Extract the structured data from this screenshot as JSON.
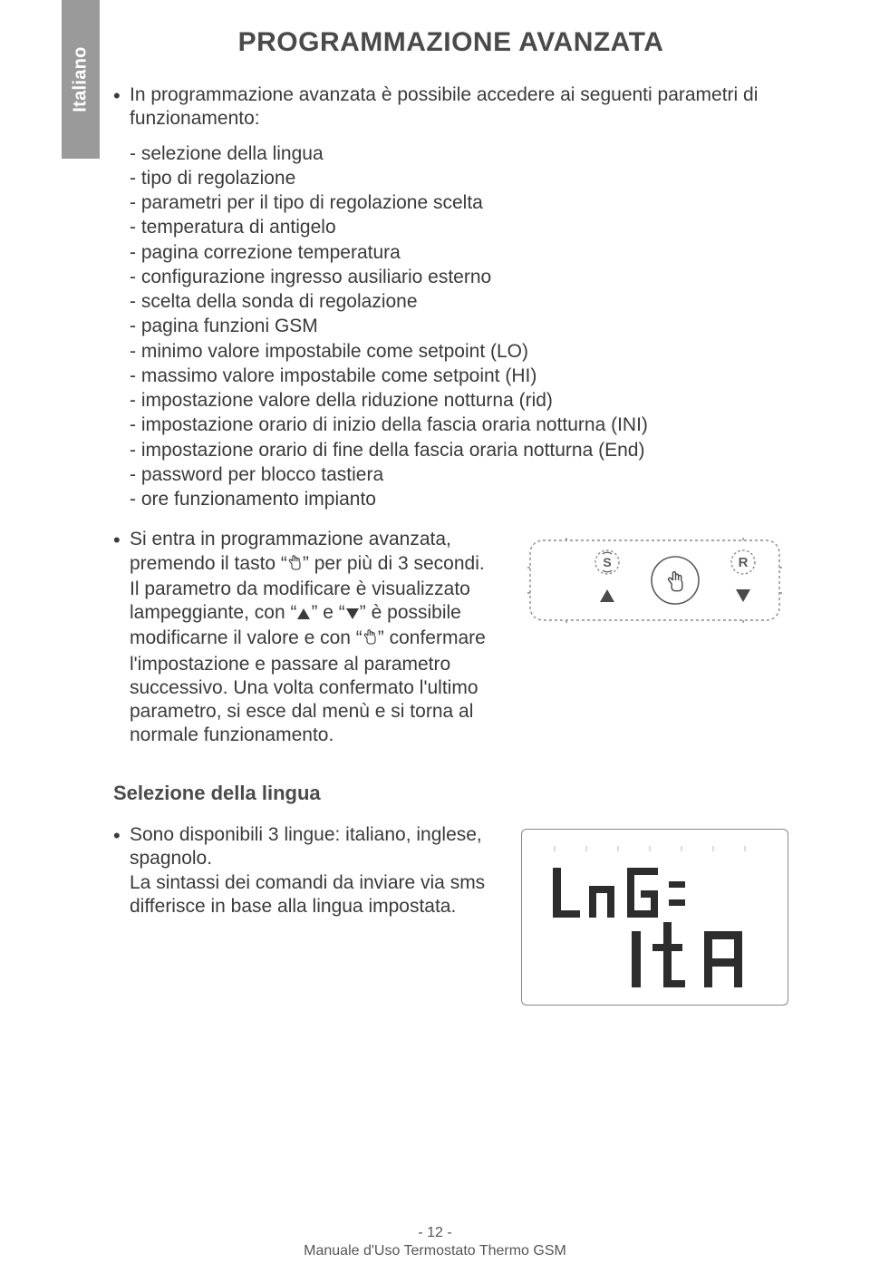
{
  "sideTab": "Italiano",
  "title": "PROGRAMMAZIONE AVANZATA",
  "intro": "In programmazione avanzata è possibile accedere ai seguenti parametri di funzionamento:",
  "paramList": [
    "- selezione della lingua",
    "- tipo di regolazione",
    "- parametri per il tipo di regolazione scelta",
    "- temperatura di antigelo",
    "- pagina correzione temperatura",
    "- configurazione ingresso ausiliario esterno",
    "- scelta della sonda di regolazione",
    "- pagina funzioni GSM",
    "- minimo valore impostabile come setpoint (LO)",
    "- massimo valore impostabile come setpoint (HI)",
    "- impostazione valore della riduzione notturna (rid)",
    "- impostazione orario di inizio della fascia oraria notturna (INI)",
    "- impostazione orario di fine della fascia oraria notturna (End)",
    "- password per blocco tastiera",
    "- ore funzionamento impianto"
  ],
  "entry": {
    "p1a": "Si entra in programmazione avanzata, premendo il tasto “",
    "p1b": "” per più di 3 secondi.",
    "p2a": "Il parametro da modificare è visualizzato lampeggiante, con “",
    "p2b": "” e “",
    "p2c": "” è possibile modificarne il valore e con “",
    "p2d": "” confermare l'impostazione e passare al parametro successivo. Una volta confermato l'ultimo parametro, si esce dal menù e si torna al normale funzionamento."
  },
  "section2": "Selezione della lingua",
  "lang": {
    "p1": "Sono disponibili 3 lingue: italiano, inglese, spagnolo.",
    "p2": "La sintassi dei comandi da inviare via sms differisce in base alla lingua impostata."
  },
  "lcd": {
    "line1": "LnG:",
    "line2": "ItA"
  },
  "footer": {
    "page": "- 12 -",
    "doc": "Manuale d'Uso Termostato Thermo GSM"
  },
  "colors": {
    "text": "#3a3a3a",
    "tabBg": "#9a9a9a",
    "tabText": "#ffffff",
    "stroke": "#6b6b6b",
    "dashed": "#9a9a9a"
  }
}
